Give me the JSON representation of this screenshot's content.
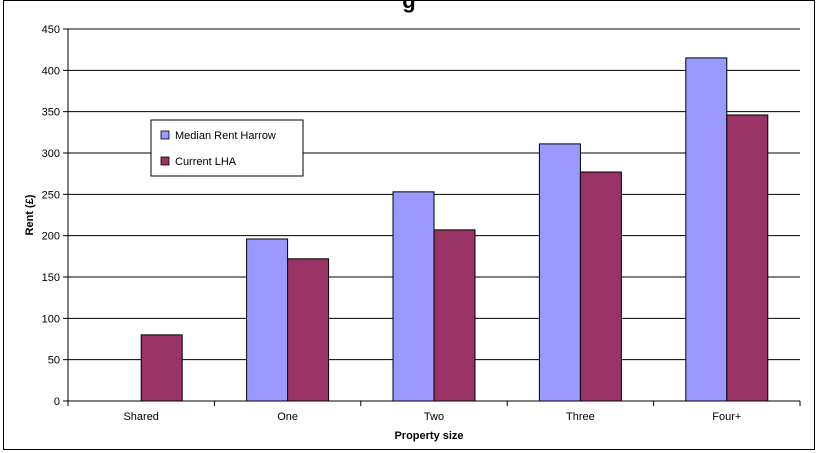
{
  "chart_data": {
    "type": "bar",
    "title": "g",
    "categories": [
      "Shared",
      "One",
      "Two",
      "Three",
      "Four+"
    ],
    "series": [
      {
        "name": "Median Rent Harrow",
        "color": "#9999ff",
        "values": [
          null,
          196,
          253,
          311,
          415
        ]
      },
      {
        "name": "Current LHA",
        "color": "#993366",
        "values": [
          80,
          172,
          207,
          277,
          346
        ]
      }
    ],
    "xlabel": "Property size",
    "ylabel": "Rent (£)",
    "ylim": [
      0,
      450
    ],
    "yticks": [
      0,
      50,
      100,
      150,
      200,
      250,
      300,
      350,
      400,
      450
    ],
    "grid": true,
    "legend_position": "upper-left"
  }
}
